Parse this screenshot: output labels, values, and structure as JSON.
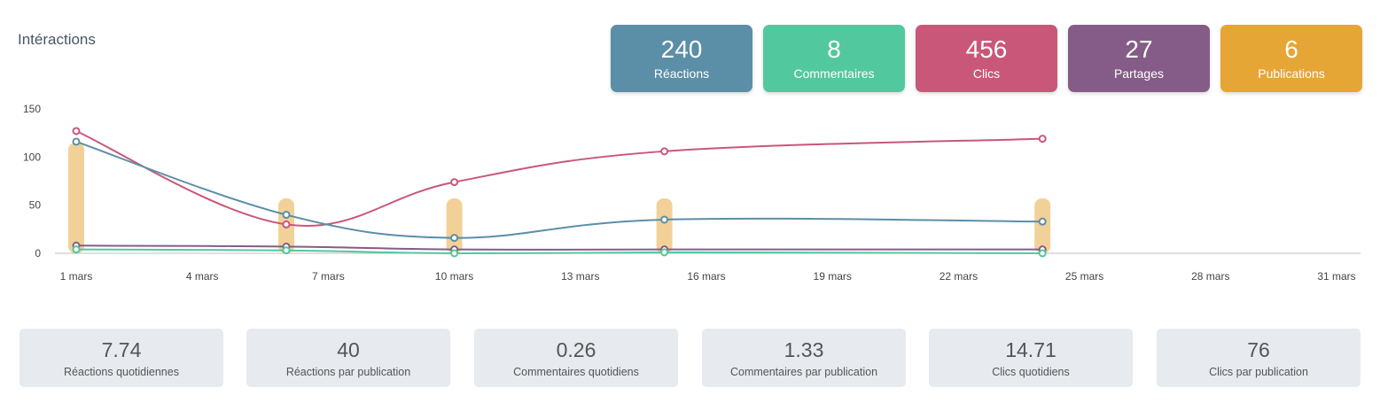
{
  "title": "Intéractions",
  "kpis": [
    {
      "value": "240",
      "label": "Réactions",
      "color": "#5b8ea7"
    },
    {
      "value": "8",
      "label": "Commentaires",
      "color": "#52c89e"
    },
    {
      "value": "456",
      "label": "Clics",
      "color": "#c9577a"
    },
    {
      "value": "27",
      "label": "Partages",
      "color": "#855c87"
    },
    {
      "value": "6",
      "label": "Publications",
      "color": "#e6a635"
    }
  ],
  "stats": [
    {
      "value": "7.74",
      "label": "Réactions quotidiennes"
    },
    {
      "value": "40",
      "label": "Réactions par publication"
    },
    {
      "value": "0.26",
      "label": "Commentaires quotidiens"
    },
    {
      "value": "1.33",
      "label": "Commentaires par publication"
    },
    {
      "value": "14.71",
      "label": "Clics quotidiens"
    },
    {
      "value": "76",
      "label": "Clics par publication"
    }
  ],
  "chart_data": {
    "type": "line",
    "ylim": [
      0,
      150
    ],
    "yticks": [
      "150",
      "100",
      "50",
      "0"
    ],
    "ytick_values": [
      150,
      100,
      50,
      0
    ],
    "xlim": [
      1,
      31
    ],
    "xticks": [
      "1 mars",
      "4 mars",
      "7 mars",
      "10 mars",
      "13 mars",
      "16 mars",
      "19 mars",
      "22 mars",
      "25 mars",
      "28 mars",
      "31 mars"
    ],
    "xtick_values": [
      1,
      4,
      7,
      10,
      13,
      16,
      19,
      22,
      25,
      28,
      31
    ],
    "bars": {
      "color": "#f2d199",
      "x": [
        1,
        6,
        10,
        15,
        24
      ],
      "values": [
        115,
        57,
        57,
        57,
        57
      ]
    },
    "series": [
      {
        "color": "#c9577a",
        "x": [
          1,
          6,
          10,
          15,
          24
        ],
        "values": [
          127,
          30,
          74,
          106,
          119
        ]
      },
      {
        "color": "#5b8ea7",
        "x": [
          1,
          6,
          10,
          15,
          24
        ],
        "values": [
          116,
          40,
          16,
          35,
          33
        ]
      },
      {
        "color": "#855c87",
        "x": [
          1,
          6,
          10,
          15,
          24
        ],
        "values": [
          8,
          7,
          4,
          4,
          4
        ]
      },
      {
        "color": "#52c89e",
        "x": [
          1,
          6,
          10,
          15,
          24
        ],
        "values": [
          4,
          3,
          0,
          1,
          0
        ]
      }
    ]
  }
}
